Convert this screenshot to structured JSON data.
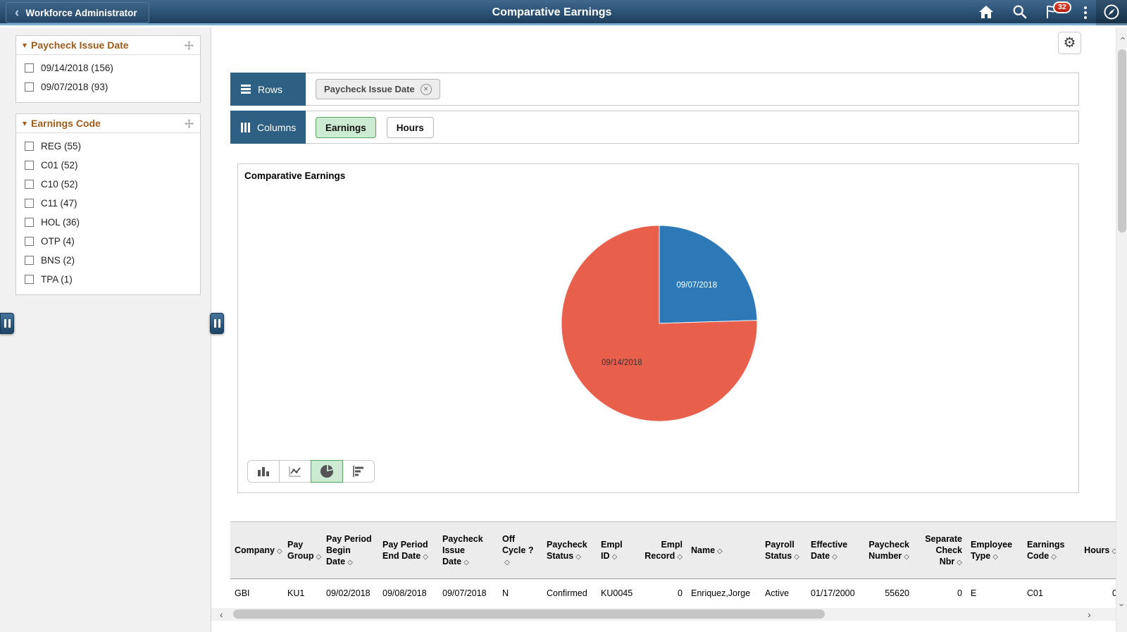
{
  "header": {
    "back_label": "Workforce Administrator",
    "title": "Comparative Earnings",
    "notification_count": "32"
  },
  "sidebar": {
    "facets": [
      {
        "title": "Paycheck Issue Date",
        "items": [
          "09/14/2018 (156)",
          "09/07/2018 (93)"
        ]
      },
      {
        "title": "Earnings Code",
        "items": [
          "REG (55)",
          "C01 (52)",
          "C10 (52)",
          "C11 (47)",
          "HOL (36)",
          "OTP (4)",
          "BNS (2)",
          "TPA (1)"
        ]
      }
    ]
  },
  "pivot": {
    "rows_label": "Rows",
    "row_chips": [
      "Paycheck Issue Date"
    ],
    "columns_label": "Columns",
    "column_options": [
      {
        "label": "Earnings",
        "selected": true
      },
      {
        "label": "Hours",
        "selected": false
      }
    ]
  },
  "chart": {
    "title": "Comparative Earnings",
    "selected_type": "pie"
  },
  "chart_data": {
    "type": "pie",
    "title": "Comparative Earnings",
    "start_angle_deg": 0,
    "slices": [
      {
        "label": "09/07/2018",
        "value": 24.5,
        "color": "#2d79b8",
        "label_color": "#ffffff"
      },
      {
        "label": "09/14/2018",
        "value": 75.5,
        "color": "#e8604c",
        "label_color": "#333333"
      }
    ],
    "legend_position": "none"
  },
  "table": {
    "columns": [
      "Company",
      "Pay Group",
      "Pay Period Begin Date",
      "Pay Period End Date",
      "Paycheck Issue Date",
      "Off Cycle ?",
      "Paycheck Status",
      "Empl ID",
      "Empl Record",
      "Name",
      "Payroll Status",
      "Effective Date",
      "Paycheck Number",
      "Separate Check Nbr",
      "Employee Type",
      "Earnings Code",
      "Hours"
    ],
    "rows": [
      [
        "GBI",
        "KU1",
        "09/02/2018",
        "09/08/2018",
        "09/07/2018",
        "N",
        "Confirmed",
        "KU0045",
        "0",
        "Enriquez,Jorge",
        "Active",
        "01/17/2000",
        "55620",
        "0",
        "E",
        "C01",
        "0"
      ]
    ]
  },
  "colors": {
    "header_blue": "#2f567a",
    "header_underline": "#7badd2",
    "pivot_block_blue": "#2d6082",
    "selected_green_bg": "#cdebd2",
    "selected_green_border": "#55a55f",
    "facet_title_orange": "#9e5c1c",
    "pie_blue": "#2d79b8",
    "pie_orange": "#e8604c",
    "badge_red": "#b51d0b"
  }
}
